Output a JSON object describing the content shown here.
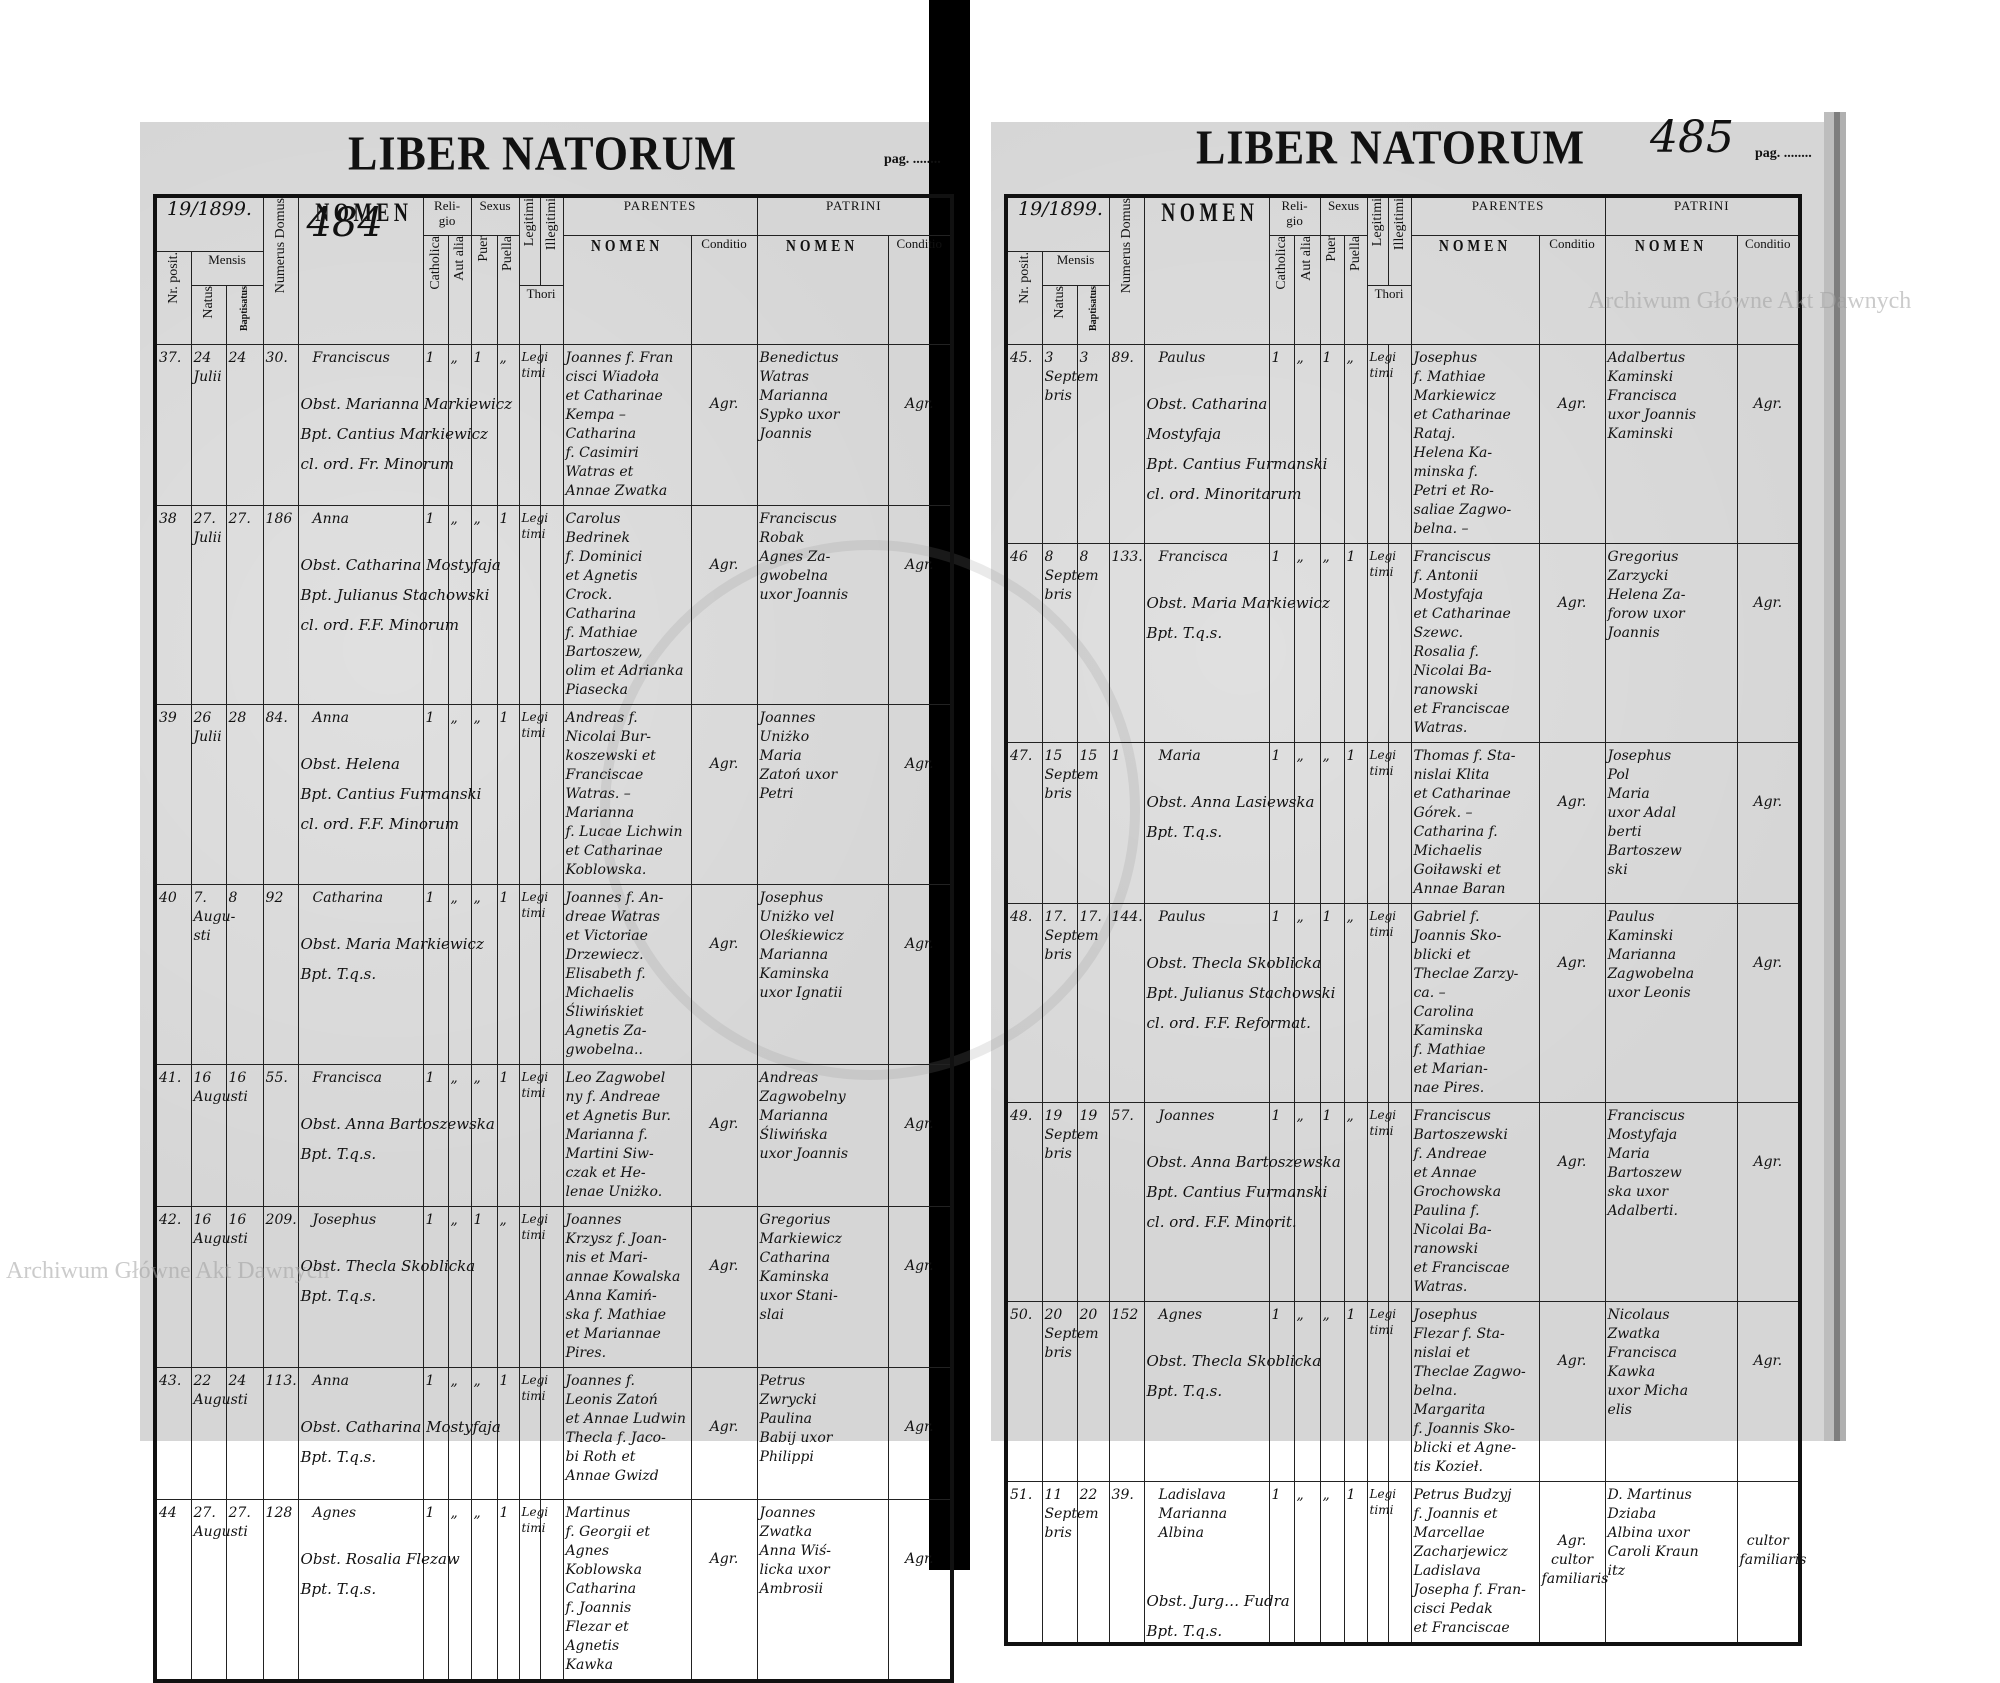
{
  "document": {
    "title": "LIBER NATORUM",
    "pag_label": "pag. ........",
    "headers": {
      "religio": "Reli-\ngio",
      "sexus": "Sexus",
      "nomen": "NOMEN",
      "mensis": "Mensis",
      "nr_posit": "Nr. posit.",
      "natus": "Natus",
      "baptisatus": "Baptisatus",
      "numerus_domus": "Numerus Domus",
      "catholica": "Catholica",
      "aut_alia": "Aut alia",
      "puer": "Puer",
      "puella": "Puella",
      "legitimi": "Legitimi",
      "illegitimi": "Illegitimi",
      "thori": "Thori",
      "parentes": "PARENTES",
      "patrini": "PATRINI",
      "sub_nomen": "NOMEN",
      "conditio": "Conditio"
    },
    "watermark": "Archiwum Główne Akt Dawnych"
  },
  "pages": [
    {
      "page_number": "484",
      "year": "19/1899.",
      "rows": [
        {
          "nr": "37.",
          "natus": "24\nJulii",
          "baptisatus": "24",
          "domus": "30.",
          "nomen": "Franciscus",
          "notes": "Obst. Marianna Markiewicz\nBpt. Cantius Markiewicz\ncl. ord. Fr. Minorum",
          "catholica": "1",
          "aut_alia": "„",
          "puer": "1",
          "puella": "„",
          "legitimi": "Legi\ntimi",
          "parentes": "Joannes f. Fran\ncisci Wiadoła\net Catharinae\nKempa –\nCatharina\nf. Casimiri\nWatras et\nAnnae Zwatka",
          "parentes_conditio": "Agr.",
          "patrini": "Benedictus\nWatras\nMarianna\nSypko uxor\nJoannis",
          "patrini_conditio": "Agr."
        },
        {
          "nr": "38",
          "natus": "27.\nJulii",
          "baptisatus": "27.",
          "domus": "186",
          "nomen": "Anna",
          "notes": "Obst. Catharina Mostyfaja\nBpt. Julianus Stachowski\ncl. ord. F.F. Minorum",
          "catholica": "1",
          "aut_alia": "„",
          "puer": "„",
          "puella": "1",
          "legitimi": "Legi\ntimi",
          "parentes": "Carolus\nBedrinek\nf. Dominici\net Agnetis\nCrock.\nCatharina\nf. Mathiae\nBartoszew,\nolim et Adrianka\nPiasecka",
          "parentes_conditio": "Agr.",
          "patrini": "Franciscus\nRobak\nAgnes Za-\ngwobelna\nuxor Joannis",
          "patrini_conditio": "Agr."
        },
        {
          "nr": "39",
          "natus": "26\nJulii",
          "baptisatus": "28",
          "domus": "84.",
          "nomen": "Anna",
          "notes": "Obst. Helena\nBpt. Cantius Furmanski\ncl. ord. F.F. Minorum",
          "catholica": "1",
          "aut_alia": "„",
          "puer": "„",
          "puella": "1",
          "legitimi": "Legi\ntimi",
          "parentes": "Andreas f.\nNicolai Bur-\nkoszewski et\nFranciscae\nWatras. –\nMarianna\nf. Lucae Lichwin\net Catharinae\nKoblowska.",
          "parentes_conditio": "Agr.",
          "patrini": "Joannes\nUniżko\nMaria\nZatoń uxor\nPetri",
          "patrini_conditio": "Agr."
        },
        {
          "nr": "40",
          "natus": "7.\nAugu-\nsti",
          "baptisatus": "8",
          "domus": "92",
          "nomen": "Catharina",
          "notes": "Obst. Maria Markiewicz\nBpt. T.q.s.",
          "catholica": "1",
          "aut_alia": "„",
          "puer": "„",
          "puella": "1",
          "legitimi": "Legi\ntimi",
          "parentes": "Joannes f. An-\ndreae Watras\net Victoriae\nDrzewiecz.\nElisabeth f.\nMichaelis\nŚliwińskiet\nAgnetis Za-\ngwobelna..",
          "parentes_conditio": "Agr.",
          "patrini": "Josephus\nUniżko vel\nOleśkiewicz\nMarianna\nKaminska\nuxor Ignatii",
          "patrini_conditio": "Agr."
        },
        {
          "nr": "41.",
          "natus": "16\nAugusti",
          "baptisatus": "16",
          "domus": "55.",
          "nomen": "Francisca",
          "notes": "Obst. Anna Bartoszewska\nBpt. T.q.s.",
          "catholica": "1",
          "aut_alia": "„",
          "puer": "„",
          "puella": "1",
          "legitimi": "Legi\ntimi",
          "parentes": "Leo Zagwobel\nny f. Andreae\net Agnetis Bur.\nMarianna f.\nMartini Siw-\nczak et He-\nlenae Uniżko.",
          "parentes_conditio": "Agr.",
          "patrini": "Andreas\nZagwobelny\nMarianna\nŚliwińska\nuxor Joannis",
          "patrini_conditio": "Agr."
        },
        {
          "nr": "42.",
          "natus": "16\nAugusti",
          "baptisatus": "16",
          "domus": "209.",
          "nomen": "Josephus",
          "notes": "Obst. Thecla Skoblicka\nBpt. T.q.s.",
          "catholica": "1",
          "aut_alia": "„",
          "puer": "1",
          "puella": "„",
          "legitimi": "Legi\ntimi",
          "parentes": "Joannes\nKrzysz f. Joan-\nnis et Mari-\nannae Kowalska\nAnna Kamiń-\nska f. Mathiae\net Mariannae\nPires.",
          "parentes_conditio": "Agr.",
          "patrini": "Gregorius\nMarkiewicz\nCatharina\nKaminska\nuxor Stani-\nslai",
          "patrini_conditio": "Agr."
        },
        {
          "nr": "43.",
          "natus": "22\nAugusti",
          "baptisatus": "24",
          "domus": "113.",
          "nomen": "Anna",
          "notes": "Obst. Catharina Mostyfaja\nBpt. T.q.s.",
          "catholica": "1",
          "aut_alia": "„",
          "puer": "„",
          "puella": "1",
          "legitimi": "Legi\ntimi",
          "parentes": "Joannes f.\nLeonis Zatoń\net Annae Ludwin\nThecla f. Jaco-\nbi Roth et\nAnnae Gwizd",
          "parentes_conditio": "Agr.",
          "patrini": "Petrus\nZwrycki\nPaulina\nBabij uxor\nPhilippi",
          "patrini_conditio": "Agr."
        },
        {
          "nr": "44",
          "natus": "27.\nAugusti",
          "baptisatus": "27.",
          "domus": "128",
          "nomen": "Agnes",
          "notes": "Obst. Rosalia Flezaw\nBpt. T.q.s.",
          "catholica": "1",
          "aut_alia": "„",
          "puer": "„",
          "puella": "1",
          "legitimi": "Legi\ntimi",
          "parentes": "Martinus\nf. Georgii et Agnes\nKoblowska\nCatharina\nf. Joannis\nFlezar et\nAgnetis\nKawka",
          "parentes_conditio": "Agr.",
          "patrini": "Joannes\nZwatka\nAnna Wiś-\nlicka uxor\nAmbrosii",
          "patrini_conditio": "Agr."
        }
      ]
    },
    {
      "page_number": "485",
      "year": "19/1899.",
      "rows": [
        {
          "nr": "45.",
          "natus": "3\nSeptem\nbris",
          "baptisatus": "3",
          "domus": "89.",
          "nomen": "Paulus",
          "notes": "Obst. Catharina\nMostyfaja\nBpt. Cantius Furmanski\ncl. ord. Minoritarum",
          "catholica": "1",
          "aut_alia": "„",
          "puer": "1",
          "puella": "„",
          "legitimi": "Legi\ntimi",
          "parentes": "Josephus\nf. Mathiae\nMarkiewicz\net Catharinae\nRataj.\nHelena Ka-\nminska f.\nPetri et Ro-\nsaliae Zagwo-\nbelna. –",
          "parentes_conditio": "Agr.",
          "patrini": "Adalbertus\nKaminski\nFrancisca\nuxor Joannis\nKaminski",
          "patrini_conditio": "Agr."
        },
        {
          "nr": "46",
          "natus": "8\nSeptem\nbris",
          "baptisatus": "8",
          "domus": "133.",
          "nomen": "Francisca",
          "notes": "Obst. Maria Markiewicz\nBpt. T.q.s.",
          "catholica": "1",
          "aut_alia": "„",
          "puer": "„",
          "puella": "1",
          "legitimi": "Legi\ntimi",
          "parentes": "Franciscus\nf. Antonii\nMostyfaja\net Catharinae\nSzewc.\nRosalia f.\nNicolai Ba-\nranowski\net Franciscae\nWatras.",
          "parentes_conditio": "Agr.",
          "patrini": "Gregorius\nZarzycki\nHelena Za-\nforow uxor\nJoannis",
          "patrini_conditio": "Agr."
        },
        {
          "nr": "47.",
          "natus": "15\nSeptem\nbris",
          "baptisatus": "15",
          "domus": "1",
          "nomen": "Maria",
          "notes": "Obst. Anna Lasiewska\nBpt. T.q.s.",
          "catholica": "1",
          "aut_alia": "„",
          "puer": "„",
          "puella": "1",
          "legitimi": "Legi\ntimi",
          "parentes": "Thomas f. Sta-\nnislai Klita\net Catharinae\nGórek. –\nCatharina f.\nMichaelis\nGoiławski et\nAnnae Baran",
          "parentes_conditio": "Agr.",
          "patrini": "Josephus\nPol\nMaria\nuxor Adal\nberti\nBartoszew\nski",
          "patrini_conditio": "Agr."
        },
        {
          "nr": "48.",
          "natus": "17.\nSeptem\nbris",
          "baptisatus": "17.",
          "domus": "144.",
          "nomen": "Paulus",
          "notes": "Obst. Thecla Skoblicka\nBpt. Julianus Stachowski\ncl. ord. F.F. Reformat.",
          "catholica": "1",
          "aut_alia": "„",
          "puer": "1",
          "puella": "„",
          "legitimi": "Legi\ntimi",
          "parentes": "Gabriel f.\nJoannis Sko-\nblicki et\nTheclae Zarzy-\nca. –\nCarolina\nKaminska\nf. Mathiae\net Marian-\nnae Pires.",
          "parentes_conditio": "Agr.",
          "patrini": "Paulus\nKaminski\nMarianna\nZagwobelna\nuxor Leonis",
          "patrini_conditio": "Agr."
        },
        {
          "nr": "49.",
          "natus": "19\nSeptem\nbris",
          "baptisatus": "19",
          "domus": "57.",
          "nomen": "Joannes",
          "notes": "Obst. Anna Bartoszewska\nBpt. Cantius Furmanski\ncl. ord. F.F. Minorit.",
          "catholica": "1",
          "aut_alia": "„",
          "puer": "1",
          "puella": "„",
          "legitimi": "Legi\ntimi",
          "parentes": "Franciscus\nBartoszewski\nf. Andreae\net Annae\nGrochowska\nPaulina f.\nNicolai Ba-\nranowski\net Franciscae\nWatras.",
          "parentes_conditio": "Agr.",
          "patrini": "Franciscus\nMostyfaja\nMaria\nBartoszew\nska uxor\nAdalberti.",
          "patrini_conditio": "Agr."
        },
        {
          "nr": "50.",
          "natus": "20\nSeptem\nbris",
          "baptisatus": "20",
          "domus": "152",
          "nomen": "Agnes",
          "notes": "Obst. Thecla Skoblicka\nBpt. T.q.s.",
          "catholica": "1",
          "aut_alia": "„",
          "puer": "„",
          "puella": "1",
          "legitimi": "Legi\ntimi",
          "parentes": "Josephus\nFlezar f. Sta-\nnislai et\nTheclae Zagwo-\nbelna.\nMargarita\nf. Joannis Sko-\nblicki et Agne-\ntis Kozieł.",
          "parentes_conditio": "Agr.",
          "patrini": "Nicolaus\nZwatka\nFrancisca\nKawka\nuxor Micha\nelis",
          "patrini_conditio": "Agr."
        },
        {
          "nr": "51.",
          "natus": "11\nSeptem\nbris",
          "baptisatus": "22",
          "domus": "39.",
          "nomen": "Ladislava\nMarianna\nAlbina",
          "notes": "\n\nObst. Jurg… Fudra\nBpt. T.q.s.",
          "catholica": "1",
          "aut_alia": "„",
          "puer": "„",
          "puella": "1",
          "legitimi": "Legi\ntimi",
          "parentes": "Petrus Budzyj\nf. Joannis et\nMarcellae\nZacharjewicz\nLadislava\nJosepha f. Fran-\ncisci Pedak\net Franciscae",
          "parentes_conditio": "Agr.\ncultor\nfamiliaris",
          "patrini": "D. Martinus\nDziaba\nAlbina uxor\nCaroli Kraun\nitz",
          "patrini_conditio": "cultor\nfamiliaris"
        }
      ]
    }
  ]
}
